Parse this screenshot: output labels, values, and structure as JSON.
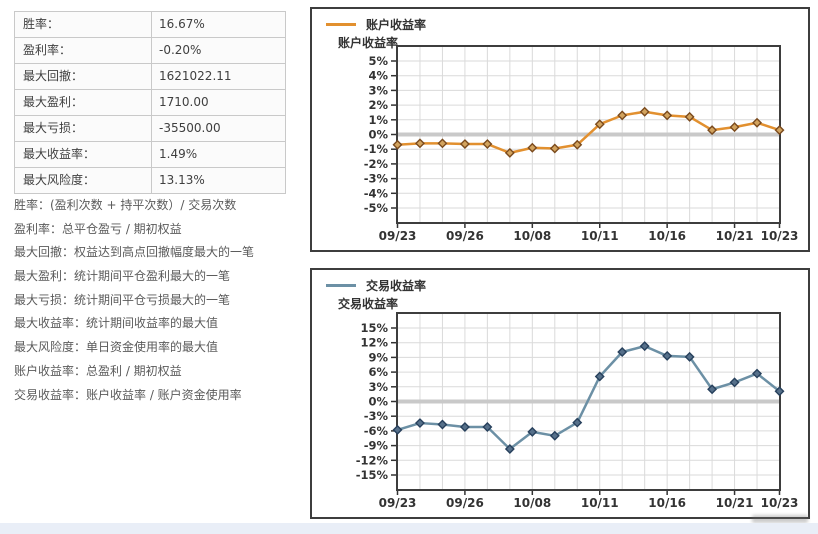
{
  "stats_table": {
    "rows": [
      {
        "label": "胜率：",
        "value": "16.67%"
      },
      {
        "label": "盈利率：",
        "value": "-0.20%"
      },
      {
        "label": "最大回撤：",
        "value": "1621022.11"
      },
      {
        "label": "最大盈利：",
        "value": "1710.00"
      },
      {
        "label": "最大亏损：",
        "value": "-35500.00"
      },
      {
        "label": "最大收益率：",
        "value": "1.49%"
      },
      {
        "label": "最大风险度：",
        "value": "13.13%"
      }
    ]
  },
  "definitions": [
    "胜率：(盈利次数 + 持平次数）/ 交易次数",
    "盈利率：总平仓盈亏 / 期初权益",
    "最大回撤：权益达到高点回撤幅度最大的一笔",
    "最大盈利：统计期间平仓盈利最大的一笔",
    "最大亏损：统计期间平仓亏损最大的一笔",
    "最大收益率：统计期间收益率的最大值",
    "最大风险度：单日资金使用率的最大值",
    "账户收益率：总盈利 / 期初权益",
    "交易收益率：账户收益率 / 账户资金使用率"
  ],
  "chart_data": [
    {
      "type": "line",
      "title": "账户收益率",
      "legend": "账户收益率",
      "ylabel": "账户收益率",
      "unit": "%",
      "ylim": [
        -5,
        5
      ],
      "ytick_step": 1,
      "grid": true,
      "legend_position": "top-left",
      "line_color": "#e2902f",
      "marker_fill": "#d2a35e",
      "marker_stroke": "#7a4a1d",
      "num_points": 18,
      "x_ticks": [
        {
          "label": "09/23",
          "index": 0
        },
        {
          "label": "09/26",
          "index": 3
        },
        {
          "label": "10/08",
          "index": 6
        },
        {
          "label": "10/11",
          "index": 9
        },
        {
          "label": "10/16",
          "index": 12
        },
        {
          "label": "10/21",
          "index": 15
        },
        {
          "label": "10/23",
          "index": 17
        }
      ],
      "values": [
        -0.7,
        -0.6,
        -0.6,
        -0.65,
        -0.65,
        -1.25,
        -0.9,
        -0.95,
        -0.7,
        0.7,
        1.3,
        1.55,
        1.3,
        1.2,
        0.3,
        0.5,
        0.8,
        0.3
      ]
    },
    {
      "type": "line",
      "title": "交易收益率",
      "legend": "交易收益率",
      "ylabel": "交易收益率",
      "unit": "%",
      "ylim": [
        -15,
        15
      ],
      "ytick_step": 3,
      "grid": true,
      "legend_position": "top-left",
      "line_color": "#6c90a5",
      "marker_fill": "#56708a",
      "marker_stroke": "#27405c",
      "num_points": 18,
      "x_ticks": [
        {
          "label": "09/23",
          "index": 0
        },
        {
          "label": "09/26",
          "index": 3
        },
        {
          "label": "10/08",
          "index": 6
        },
        {
          "label": "10/11",
          "index": 9
        },
        {
          "label": "10/16",
          "index": 12
        },
        {
          "label": "10/21",
          "index": 15
        },
        {
          "label": "10/23",
          "index": 17
        }
      ],
      "values": [
        -5.8,
        -4.4,
        -4.7,
        -5.2,
        -5.2,
        -9.7,
        -6.2,
        -7.0,
        -4.3,
        5.1,
        10.1,
        11.3,
        9.3,
        9.1,
        2.5,
        3.9,
        5.7,
        2.1
      ]
    }
  ],
  "colors": {
    "grid": "#dadada",
    "zero_line": "#c9c9c9",
    "plot_border": "#3d3d3d",
    "axis_text": "#333333",
    "footer_bar": "#e9eef7"
  }
}
